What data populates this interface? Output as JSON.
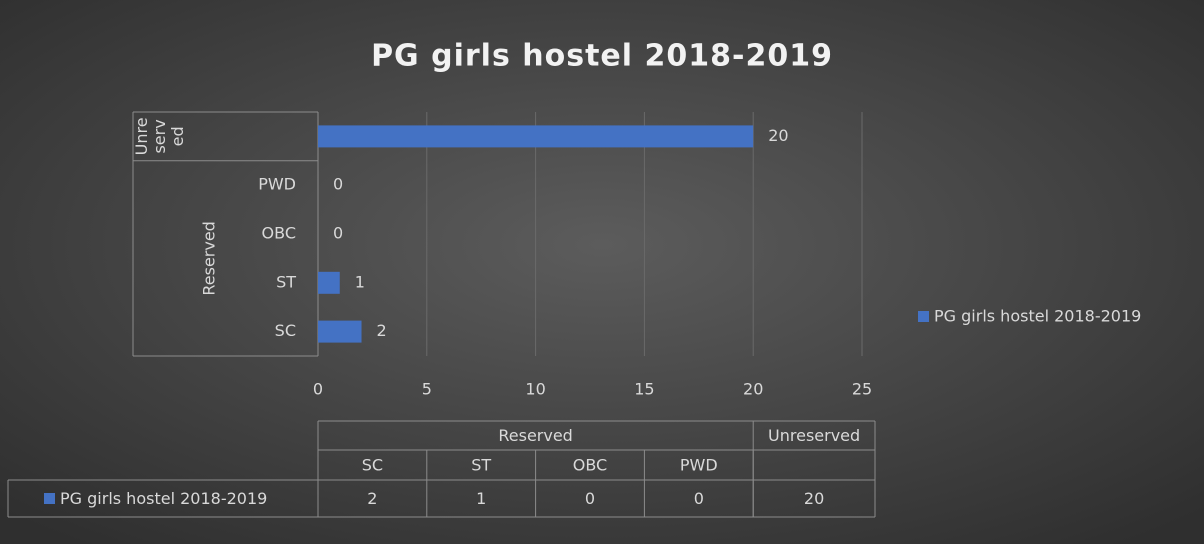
{
  "chart_data": {
    "type": "bar",
    "orientation": "horizontal",
    "title": "PG girls hostel 2018-2019",
    "categories": [
      "SC",
      "ST",
      "OBC",
      "PWD",
      null
    ],
    "groups": [
      {
        "label": "Reserved",
        "span": 4
      },
      {
        "label": "Unreserved",
        "span": 1
      }
    ],
    "series": [
      {
        "name": "PG girls hostel 2018-2019",
        "color": "#4472c4",
        "values": [
          2,
          1,
          0,
          0,
          20
        ]
      }
    ],
    "xlim": [
      0,
      25
    ],
    "xticks": [
      0,
      5,
      10,
      15,
      20,
      25
    ],
    "grid": true,
    "legend": "right",
    "data_table": true
  }
}
